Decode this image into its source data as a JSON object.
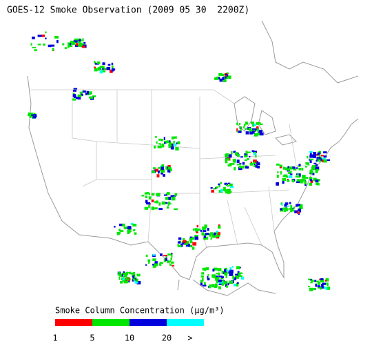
{
  "title": "GOES-12 Smoke Observation (2009 05 30  2200Z)",
  "legend": {
    "title": "Smoke Column Concentration (μg/m³)",
    "colors": [
      "#ff0000",
      "#00e600",
      "#0000dc",
      "#00ffff"
    ],
    "ticks": [
      1,
      5,
      10,
      20
    ],
    "overflow_label": ">"
  }
}
